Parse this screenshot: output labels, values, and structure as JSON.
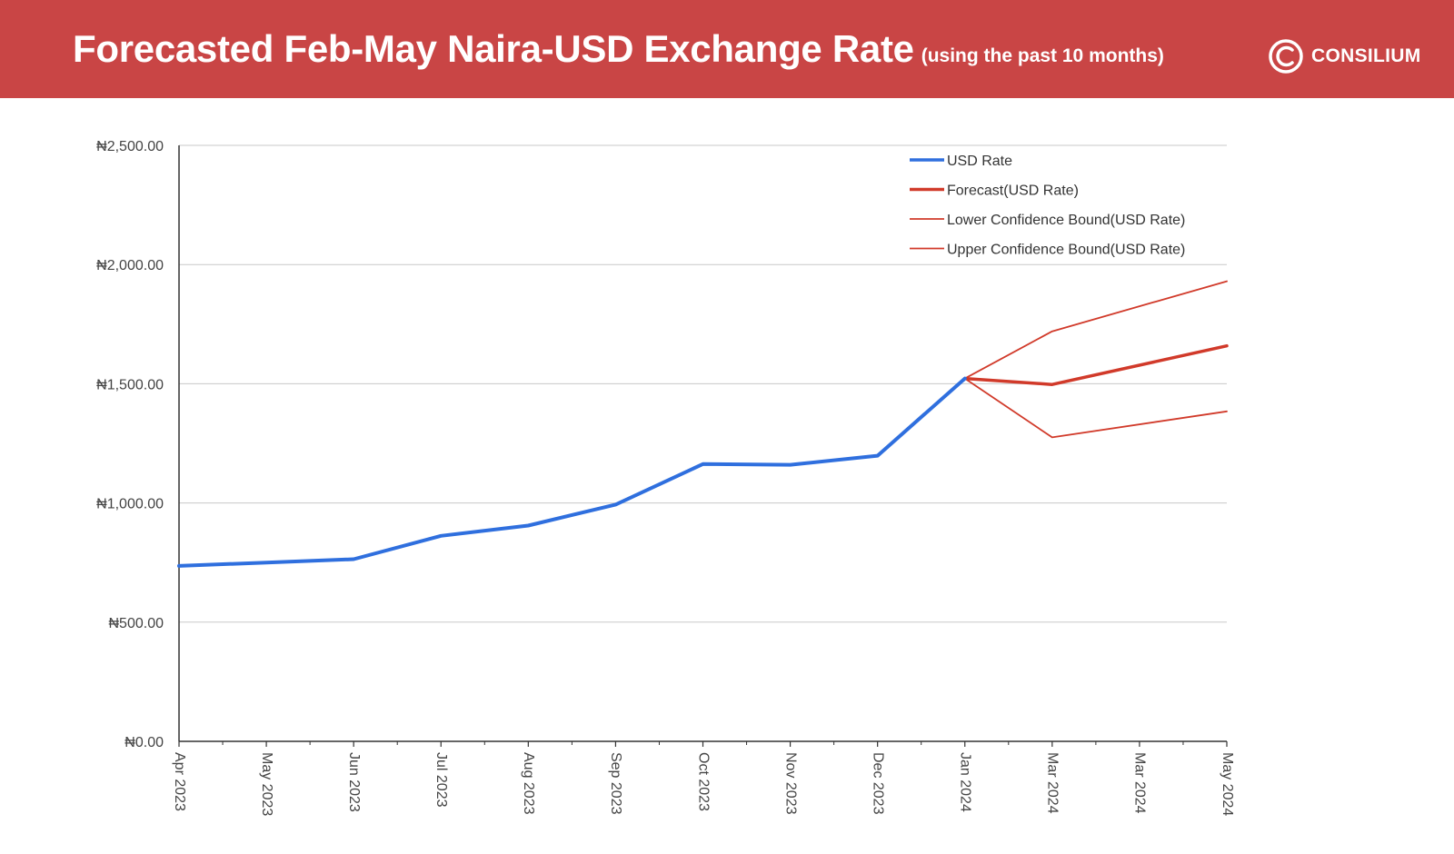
{
  "header": {
    "title": "Forecasted Feb-May Naira-USD Exchange Rate",
    "subtitle": "(using the past 10 months)",
    "logo_text": "CONSILIUM",
    "background": "#c94545"
  },
  "chart_data": {
    "type": "line",
    "categories": [
      "Apr 2023",
      "May 2023",
      "Jun 2023",
      "Jul 2023",
      "Aug 2023",
      "Sep 2023",
      "Oct 2023",
      "Nov 2023",
      "Dec 2023",
      "Jan 2024",
      "Mar 2024",
      "Mar 2024",
      "May 2024"
    ],
    "ylim": [
      0,
      2500
    ],
    "yticks": [
      0,
      500,
      1000,
      1500,
      2000,
      2500
    ],
    "ytick_labels": [
      "₦0.00",
      "₦500.00",
      "₦1,000.00",
      "₦1,500.00",
      "₦2,000.00",
      "₦2,500.00"
    ],
    "grid": true,
    "legend_position": "top-right",
    "series": [
      {
        "name": "USD Rate",
        "color": "#2f6fde",
        "width": 4,
        "points": [
          [
            0,
            736
          ],
          [
            1,
            750
          ],
          [
            2,
            764
          ],
          [
            3,
            862
          ],
          [
            4,
            905
          ],
          [
            5,
            993
          ],
          [
            6,
            1163
          ],
          [
            7,
            1160
          ],
          [
            8,
            1198
          ],
          [
            9,
            1522
          ]
        ]
      },
      {
        "name": "Forecast(USD Rate)",
        "color": "#d13a2a",
        "width": 3.5,
        "points": [
          [
            9,
            1522
          ],
          [
            10,
            1497
          ],
          [
            12,
            1659
          ]
        ]
      },
      {
        "name": "Lower Confidence Bound(USD Rate)",
        "color": "#d13a2a",
        "width": 1.8,
        "points": [
          [
            9,
            1522
          ],
          [
            10,
            1275
          ],
          [
            12,
            1384
          ]
        ]
      },
      {
        "name": "Upper Confidence Bound(USD Rate)",
        "color": "#d13a2a",
        "width": 1.8,
        "points": [
          [
            9,
            1522
          ],
          [
            10,
            1720
          ],
          [
            12,
            1930
          ]
        ]
      }
    ]
  }
}
